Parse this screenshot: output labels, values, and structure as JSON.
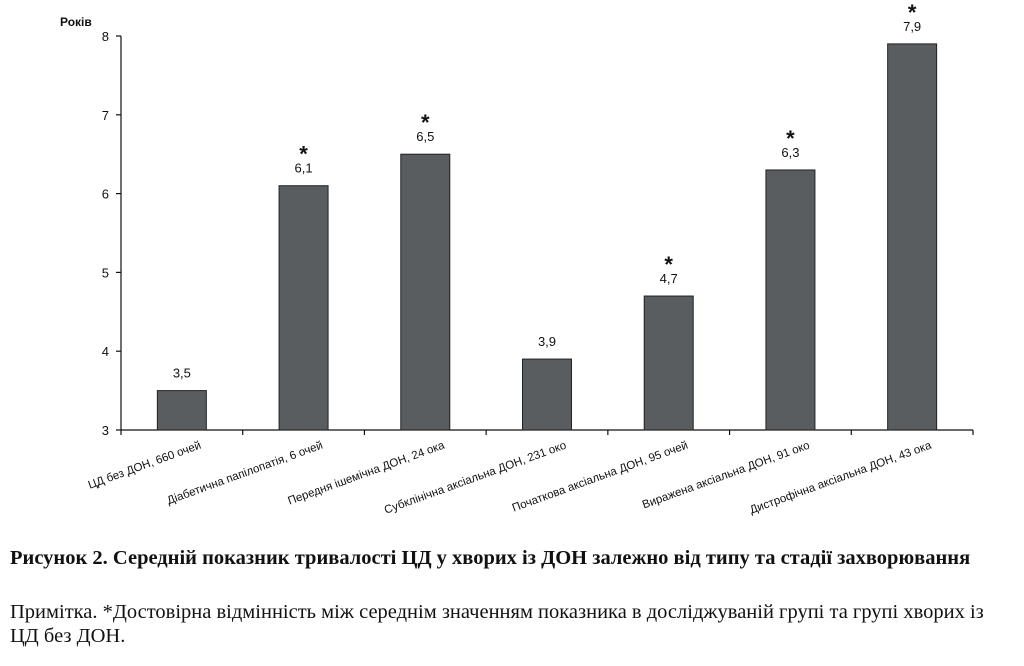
{
  "chart_data": {
    "type": "bar",
    "ylabel": "Років",
    "ylim": [
      3,
      8
    ],
    "yticks": [
      "3",
      "4",
      "5",
      "6",
      "7",
      "8"
    ],
    "categories": [
      "ЦД без ДОН, 660 очей",
      "Діабетична папілопатія, 6 очей",
      "Передня ішемічна ДОН, 24 ока",
      "Субклінічна аксіальна ДОН, 231 око",
      "Початкова аксіальна ДОН, 95 очей",
      "Виражена аксіальна ДОН, 91 око",
      "Дистрофічна аксіальна ДОН, 43 ока"
    ],
    "values": [
      3.5,
      6.1,
      6.5,
      3.9,
      4.7,
      6.3,
      7.9
    ],
    "value_labels": [
      "3,5",
      "6,1",
      "6,5",
      "3,9",
      "4,7",
      "6,3",
      "7,9"
    ],
    "significant": [
      false,
      true,
      true,
      false,
      true,
      true,
      true
    ],
    "significance_marker": "*",
    "bar_color": "#595d5f"
  },
  "caption": {
    "title": "Рисунок 2. Середній показник тривалості ЦД у хворих із ДОН залежно від типу та стадії захворювання",
    "note": "Примітка. *Достовірна відмінність між середнім значенням показника в досліджуваній групі та групі хворих із ЦД без ДОН."
  }
}
